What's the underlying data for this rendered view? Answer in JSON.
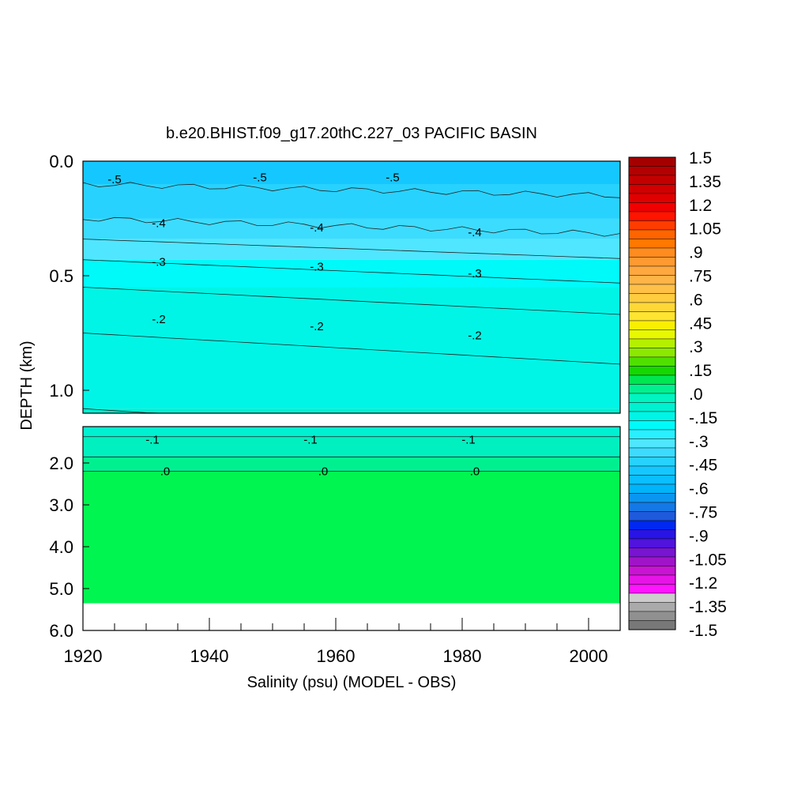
{
  "chart_data": {
    "type": "heatmap",
    "title": "b.e20.BHIST.f09_g17.20thC.227_03 PACIFIC BASIN",
    "xlabel": "Salinity (psu) (MODEL - OBS)",
    "ylabel": "DEPTH (km)",
    "xlim": [
      1920,
      2005
    ],
    "x_ticks": [
      "1920",
      "1940",
      "1960",
      "1980",
      "2000"
    ],
    "upper_panel": {
      "ylim": [
        0.0,
        1.1
      ],
      "y_ticks": [
        "0.0",
        "0.5",
        "1.0"
      ]
    },
    "lower_panel": {
      "ylim": [
        1.1,
        6.0
      ],
      "y_ticks": [
        "2.0",
        "3.0",
        "4.0",
        "5.0",
        "6.0"
      ]
    },
    "colorbar": {
      "labels": [
        "1.5",
        "1.35",
        "1.2",
        "1.05",
        ".9",
        ".75",
        ".6",
        ".45",
        ".3",
        ".15",
        ".0",
        "-.15",
        "-.3",
        "-.45",
        "-.6",
        "-.75",
        "-.9",
        "-1.05",
        "-1.2",
        "-1.35",
        "-1.5"
      ],
      "colors": [
        "#a50000",
        "#b40000",
        "#c30000",
        "#d20000",
        "#e10000",
        "#f00000",
        "#ff1400",
        "#ff3c00",
        "#ff6400",
        "#ff7800",
        "#ff8c1e",
        "#ff9a32",
        "#ffa840",
        "#ffb448",
        "#ffc048",
        "#ffcc40",
        "#ffd838",
        "#ffe430",
        "#f8f000",
        "#e8f800",
        "#b4f000",
        "#8ce800",
        "#50e000",
        "#14d800",
        "#00e650",
        "#00f090",
        "#00f5c0",
        "#00f0d2",
        "#00f5e6",
        "#00fafa",
        "#28f0ff",
        "#50e6ff",
        "#3cdcff",
        "#28d2ff",
        "#14c8ff",
        "#0abeff",
        "#00b4fa",
        "#0a96f0",
        "#1478e6",
        "#1e5adc",
        "#0028f0",
        "#2814e6",
        "#5014dc",
        "#7814d2",
        "#a014c8",
        "#c814d2",
        "#e614e6",
        "#ff14ff",
        "#cccccc",
        "#aaaaaa",
        "#909090",
        "#787878"
      ]
    },
    "contour_labels": [
      {
        "text": "-.5",
        "x": 1925,
        "y": 0.08
      },
      {
        "text": "-.5",
        "x": 1948,
        "y": 0.07
      },
      {
        "text": "-.5",
        "x": 1969,
        "y": 0.07
      },
      {
        "text": "-.4",
        "x": 1932,
        "y": 0.27
      },
      {
        "text": "-.4",
        "x": 1957,
        "y": 0.29
      },
      {
        "text": "-.4",
        "x": 1982,
        "y": 0.31
      },
      {
        "text": "-.3",
        "x": 1932,
        "y": 0.44
      },
      {
        "text": "-.3",
        "x": 1957,
        "y": 0.46
      },
      {
        "text": "-.3",
        "x": 1982,
        "y": 0.49
      },
      {
        "text": "-.2",
        "x": 1932,
        "y": 0.69
      },
      {
        "text": "-.2",
        "x": 1957,
        "y": 0.72
      },
      {
        "text": "-.2",
        "x": 1982,
        "y": 0.76
      },
      {
        "text": "-.1",
        "x": 1931,
        "y": 1.42
      },
      {
        "text": "-.1",
        "x": 1956,
        "y": 1.42
      },
      {
        "text": "-.1",
        "x": 1981,
        "y": 1.42
      },
      {
        "text": ".0",
        "x": 1933,
        "y": 2.2
      },
      {
        "text": ".0",
        "x": 1958,
        "y": 2.2
      },
      {
        "text": ".0",
        "x": 1982,
        "y": 2.2
      }
    ],
    "regions": [
      {
        "name": "-.5 to -.45",
        "top": 0.0,
        "bottom": 0.1,
        "color": "#14c8ff"
      },
      {
        "name": "-.45 to -.4",
        "top": 0.1,
        "bottom": 0.25,
        "color": "#28d2ff"
      },
      {
        "name": "-.4 to -.35",
        "top": 0.25,
        "bottom": 0.34,
        "color": "#3cdcff"
      },
      {
        "name": "-.35 to -.3",
        "top": 0.34,
        "bottom": 0.43,
        "color": "#50e6ff"
      },
      {
        "name": "-.3 to -.2",
        "top": 0.43,
        "bottom": 0.55,
        "color": "#00fafa"
      },
      {
        "name": "-.2 to -.1",
        "top": 0.55,
        "bottom": 1.08,
        "color": "#00f5e6"
      },
      {
        "name": "-.1 lower",
        "top": 1.08,
        "bottom": 1.35,
        "color": "#00f0d2"
      },
      {
        "name": "-.1 band",
        "top": 1.35,
        "bottom": 1.85,
        "color": "#00f0c0"
      },
      {
        "name": "-.05 to .0",
        "top": 1.85,
        "bottom": 2.2,
        "color": "#00f090"
      },
      {
        "name": ".0 to .05",
        "top": 2.2,
        "bottom": 5.35,
        "color": "#00f550"
      }
    ]
  }
}
